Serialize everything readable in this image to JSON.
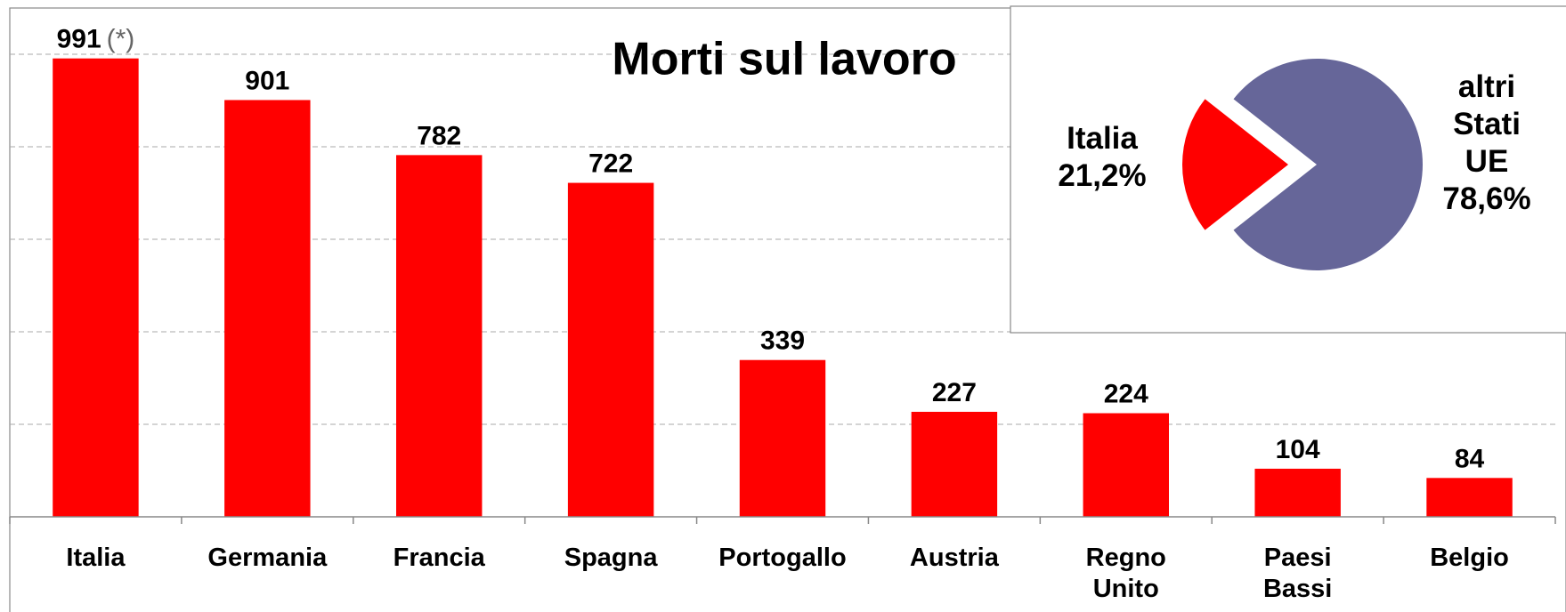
{
  "chart_data": [
    {
      "type": "bar",
      "title": "Morti sul lavoro",
      "categories": [
        "Italia",
        "Germania",
        "Francia",
        "Spagna",
        "Portogallo",
        "Austria",
        "Regno\nUnito",
        "Paesi\nBassi",
        "Belgio"
      ],
      "values": [
        991,
        901,
        782,
        722,
        339,
        227,
        224,
        104,
        84
      ],
      "annotation": "(*)",
      "color": "#ff0000",
      "ylim": [
        0,
        1100
      ],
      "yticks": [
        0,
        200,
        400,
        600,
        800,
        1000
      ],
      "grid": true
    },
    {
      "type": "pie",
      "categories": [
        "Italia",
        "altri\nStati\nUE"
      ],
      "values": [
        21.2,
        78.6
      ],
      "value_labels": [
        "21,2%",
        "78,6%"
      ],
      "colors": [
        "#ff0000",
        "#666699"
      ],
      "explode": [
        true,
        false
      ]
    }
  ]
}
